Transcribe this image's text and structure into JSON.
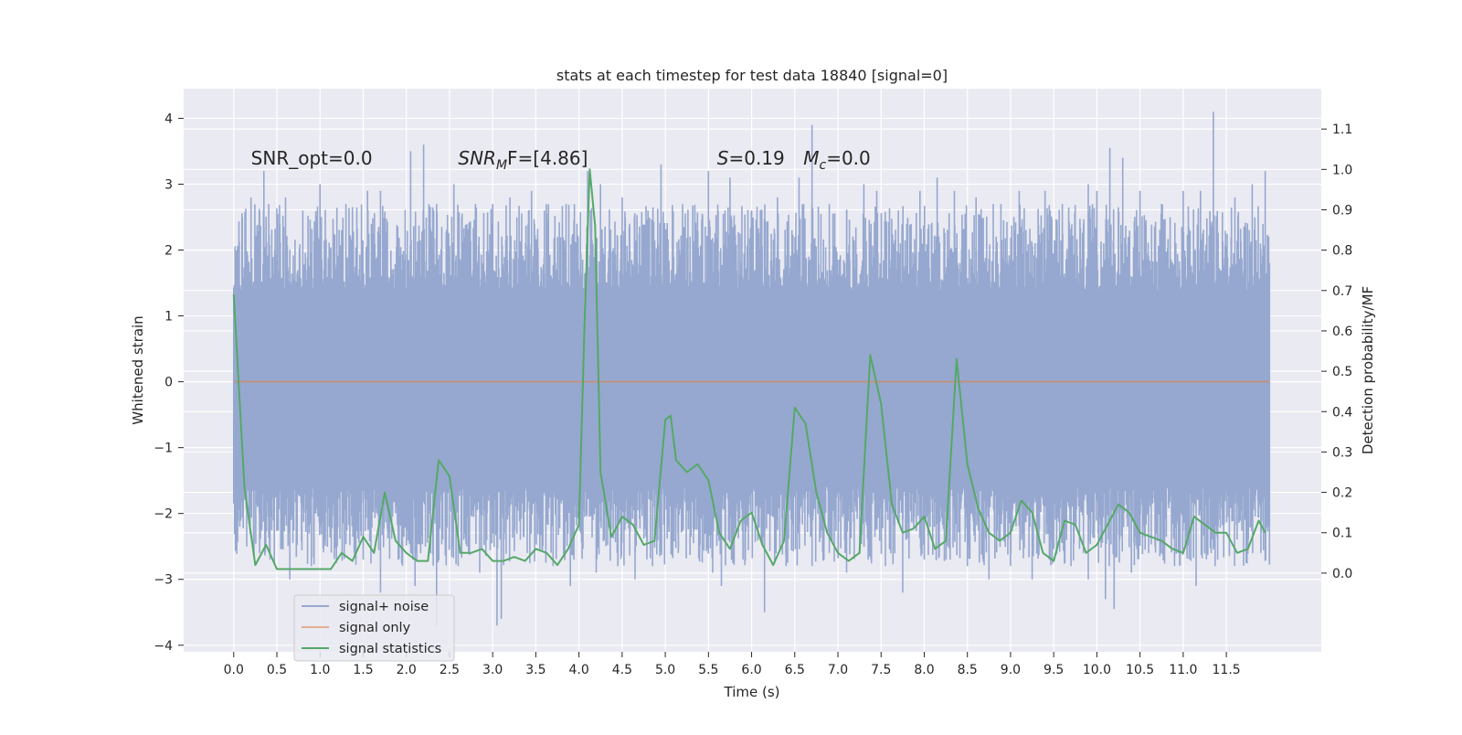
{
  "chart_data": {
    "type": "line",
    "title": "stats at each timestep for test data 18840 [signal=0]",
    "xlabel": "Time (s)",
    "ylabel": "Whitened strain",
    "ylabel_right": "Detection probability/MF",
    "xlim": [
      -0.58,
      12.6
    ],
    "ylim": [
      -4.1,
      4.45
    ],
    "ylim_right": [
      -0.195,
      1.2
    ],
    "xticks": [
      0.0,
      0.5,
      1.0,
      1.5,
      2.0,
      2.5,
      3.0,
      3.5,
      4.0,
      4.5,
      5.0,
      5.5,
      6.0,
      6.5,
      7.0,
      7.5,
      8.0,
      8.5,
      9.0,
      9.5,
      10.0,
      10.5,
      11.0,
      11.5
    ],
    "xtick_labels": [
      "0.0",
      "0.5",
      "1.0",
      "1.5",
      "2.0",
      "2.5",
      "3.0",
      "3.5",
      "4.0",
      "4.5",
      "5.0",
      "5.5",
      "6.0",
      "6.5",
      "7.0",
      "7.5",
      "8.0",
      "8.5",
      "9.0",
      "9.5",
      "10.0",
      "10.5",
      "11.0",
      "11.5"
    ],
    "yticks": [
      -4,
      -3,
      -2,
      -1,
      0,
      1,
      2,
      3,
      4
    ],
    "ytick_labels": [
      "−4",
      "−3",
      "−2",
      "−1",
      "0",
      "1",
      "2",
      "3",
      "4"
    ],
    "yticks_right": [
      0.0,
      0.1,
      0.2,
      0.3,
      0.4,
      0.5,
      0.6,
      0.7,
      0.8,
      0.9,
      1.0,
      1.1
    ],
    "ytick_right_labels": [
      "0.0",
      "0.1",
      "0.2",
      "0.3",
      "0.4",
      "0.5",
      "0.6",
      "0.7",
      "0.8",
      "0.9",
      "1.0",
      "1.1"
    ],
    "grid": true,
    "annotations": [
      {
        "text": "SNR_opt=0.0",
        "x": 0.2,
        "y": 3.3,
        "math": false
      },
      {
        "text_main": "SNR",
        "text_sub": "M",
        "text_rest": "F=[4.86]",
        "x": 2.6,
        "y": 3.3,
        "math": true
      },
      {
        "text_main": "S",
        "text_rest": "=0.19",
        "x": 5.6,
        "y": 3.3,
        "math": true
      },
      {
        "text_main": "M",
        "text_sub": "c",
        "text_rest": "=0.0",
        "x": 6.6,
        "y": 3.3,
        "math": true
      }
    ],
    "legend": {
      "position": "lower-left",
      "entries": [
        "signal+ noise",
        "signal only",
        "signal statistics"
      ]
    },
    "series": [
      {
        "name": "signal+ noise",
        "color": "#96a8cf",
        "axis": "left",
        "x_range": [
          0.0,
          12.0
        ],
        "band_typical": [
          -1.6,
          1.4
        ],
        "peaks": [
          [
            0.1,
            2.5
          ],
          [
            0.2,
            2.8
          ],
          [
            0.35,
            3.2
          ],
          [
            0.6,
            2.8
          ],
          [
            0.8,
            2.6
          ],
          [
            1.0,
            3.0
          ],
          [
            1.3,
            2.7
          ],
          [
            1.55,
            2.9
          ],
          [
            1.7,
            2.9
          ],
          [
            2.05,
            3.5
          ],
          [
            2.2,
            3.6
          ],
          [
            2.35,
            2.7
          ],
          [
            2.55,
            3.0
          ],
          [
            2.8,
            2.7
          ],
          [
            3.0,
            2.7
          ],
          [
            3.2,
            2.8
          ],
          [
            3.45,
            2.9
          ],
          [
            3.6,
            2.6
          ],
          [
            3.85,
            2.7
          ],
          [
            4.1,
            3.2
          ],
          [
            4.25,
            3.0
          ],
          [
            4.5,
            2.8
          ],
          [
            4.8,
            2.6
          ],
          [
            4.95,
            3.3
          ],
          [
            5.2,
            2.7
          ],
          [
            5.5,
            3.2
          ],
          [
            5.75,
            3.1
          ],
          [
            6.0,
            2.6
          ],
          [
            6.3,
            2.8
          ],
          [
            6.55,
            3.1
          ],
          [
            6.7,
            3.9
          ],
          [
            6.9,
            2.7
          ],
          [
            7.1,
            2.6
          ],
          [
            7.3,
            3.0
          ],
          [
            7.45,
            2.9
          ],
          [
            7.7,
            2.6
          ],
          [
            7.95,
            2.9
          ],
          [
            8.15,
            3.1
          ],
          [
            8.35,
            2.9
          ],
          [
            8.6,
            2.8
          ],
          [
            8.8,
            2.7
          ],
          [
            9.1,
            2.9
          ],
          [
            9.4,
            2.9
          ],
          [
            9.6,
            2.7
          ],
          [
            9.9,
            3.0
          ],
          [
            10.0,
            2.9
          ],
          [
            10.15,
            3.55
          ],
          [
            10.3,
            3.4
          ],
          [
            10.5,
            2.9
          ],
          [
            10.75,
            2.7
          ],
          [
            11.0,
            2.9
          ],
          [
            11.2,
            2.9
          ],
          [
            11.35,
            4.1
          ],
          [
            11.6,
            2.8
          ],
          [
            11.8,
            3.0
          ],
          [
            11.95,
            3.2
          ]
        ],
        "troughs": [
          [
            0.05,
            -2.1
          ],
          [
            0.3,
            -2.6
          ],
          [
            0.55,
            -2.5
          ],
          [
            0.65,
            -3.0
          ],
          [
            0.9,
            -2.8
          ],
          [
            1.2,
            -2.5
          ],
          [
            1.5,
            -2.7
          ],
          [
            1.7,
            -3.2
          ],
          [
            1.95,
            -2.7
          ],
          [
            2.1,
            -3.1
          ],
          [
            2.35,
            -3.7
          ],
          [
            2.6,
            -2.8
          ],
          [
            2.85,
            -2.9
          ],
          [
            3.05,
            -3.7
          ],
          [
            3.1,
            -3.6
          ],
          [
            3.4,
            -2.6
          ],
          [
            3.7,
            -2.8
          ],
          [
            3.9,
            -3.1
          ],
          [
            4.2,
            -2.9
          ],
          [
            4.45,
            -2.8
          ],
          [
            4.65,
            -3.0
          ],
          [
            4.9,
            -2.4
          ],
          [
            5.15,
            -2.6
          ],
          [
            5.55,
            -2.9
          ],
          [
            5.65,
            -3.1
          ],
          [
            5.9,
            -2.7
          ],
          [
            6.15,
            -3.5
          ],
          [
            6.4,
            -2.8
          ],
          [
            6.7,
            -2.8
          ],
          [
            6.9,
            -2.6
          ],
          [
            7.1,
            -2.9
          ],
          [
            7.35,
            -2.7
          ],
          [
            7.55,
            -2.8
          ],
          [
            7.75,
            -3.2
          ],
          [
            8.0,
            -2.7
          ],
          [
            8.3,
            -2.7
          ],
          [
            8.5,
            -2.8
          ],
          [
            8.75,
            -3.0
          ],
          [
            9.0,
            -2.8
          ],
          [
            9.25,
            -3.0
          ],
          [
            9.45,
            -2.7
          ],
          [
            9.7,
            -2.8
          ],
          [
            9.9,
            -3.0
          ],
          [
            10.1,
            -3.3
          ],
          [
            10.2,
            -3.45
          ],
          [
            10.4,
            -2.9
          ],
          [
            10.6,
            -2.6
          ],
          [
            10.9,
            -2.8
          ],
          [
            11.15,
            -3.1
          ],
          [
            11.4,
            -2.7
          ],
          [
            11.7,
            -2.5
          ],
          [
            11.9,
            -2.6
          ]
        ]
      },
      {
        "name": "signal only",
        "color": "#dd8452",
        "axis": "left",
        "x": [
          0.0,
          12.0
        ],
        "y": [
          0.0,
          0.0
        ]
      },
      {
        "name": "signal statistics",
        "color": "#55a868",
        "axis": "right",
        "x": [
          0.0,
          0.125,
          0.25,
          0.375,
          0.5,
          0.625,
          0.75,
          0.875,
          1.0,
          1.125,
          1.25,
          1.375,
          1.5,
          1.625,
          1.75,
          1.875,
          2.0,
          2.125,
          2.25,
          2.375,
          2.5,
          2.625,
          2.75,
          2.875,
          3.0,
          3.125,
          3.25,
          3.375,
          3.5,
          3.625,
          3.75,
          3.875,
          4.0,
          4.0625,
          4.125,
          4.1875,
          4.25,
          4.375,
          4.5,
          4.625,
          4.75,
          4.875,
          5.0,
          5.0625,
          5.125,
          5.25,
          5.375,
          5.5,
          5.625,
          5.75,
          5.875,
          6.0,
          6.125,
          6.25,
          6.375,
          6.5,
          6.625,
          6.75,
          6.875,
          7.0,
          7.125,
          7.25,
          7.375,
          7.5,
          7.625,
          7.75,
          7.875,
          8.0,
          8.125,
          8.25,
          8.375,
          8.5,
          8.625,
          8.75,
          8.875,
          9.0,
          9.125,
          9.25,
          9.375,
          9.5,
          9.625,
          9.75,
          9.875,
          10.0,
          10.125,
          10.25,
          10.375,
          10.5,
          10.625,
          10.75,
          10.875,
          11.0,
          11.125,
          11.25,
          11.375,
          11.5,
          11.625,
          11.75,
          11.875,
          11.95
        ],
        "y": [
          0.69,
          0.21,
          0.02,
          0.07,
          0.01,
          0.01,
          0.01,
          0.01,
          0.01,
          0.01,
          0.05,
          0.03,
          0.09,
          0.05,
          0.2,
          0.08,
          0.05,
          0.03,
          0.03,
          0.28,
          0.24,
          0.05,
          0.05,
          0.06,
          0.03,
          0.03,
          0.04,
          0.03,
          0.06,
          0.05,
          0.02,
          0.06,
          0.12,
          0.6,
          1.0,
          0.86,
          0.25,
          0.09,
          0.14,
          0.12,
          0.07,
          0.08,
          0.38,
          0.39,
          0.28,
          0.25,
          0.27,
          0.23,
          0.1,
          0.06,
          0.13,
          0.15,
          0.07,
          0.02,
          0.08,
          0.41,
          0.37,
          0.2,
          0.1,
          0.05,
          0.03,
          0.05,
          0.54,
          0.42,
          0.17,
          0.1,
          0.11,
          0.14,
          0.06,
          0.08,
          0.53,
          0.27,
          0.16,
          0.1,
          0.08,
          0.1,
          0.18,
          0.15,
          0.05,
          0.03,
          0.13,
          0.12,
          0.05,
          0.07,
          0.12,
          0.17,
          0.15,
          0.1,
          0.09,
          0.08,
          0.06,
          0.05,
          0.14,
          0.12,
          0.1,
          0.1,
          0.05,
          0.06,
          0.13,
          0.1
        ]
      }
    ]
  }
}
